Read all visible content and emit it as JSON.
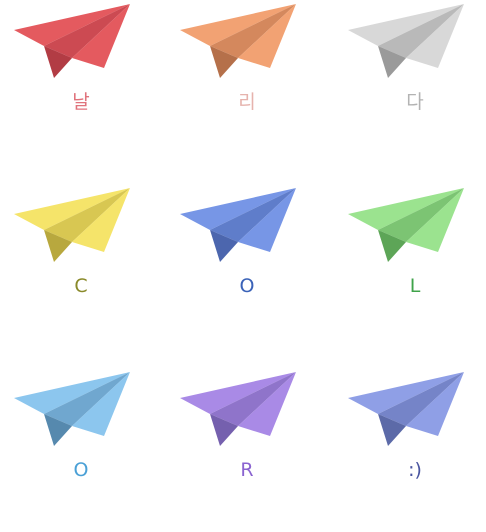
{
  "tiles": [
    {
      "label": "날",
      "icon": "paper-plane-icon",
      "color": "#e45a5f",
      "shade": "#b23c44",
      "mid": "#cc4a52",
      "text_color": "#e0737c"
    },
    {
      "label": "리",
      "icon": "paper-plane-icon",
      "color": "#f2a273",
      "shade": "#b5704a",
      "mid": "#d4885d",
      "text_color": "#e6b3ad"
    },
    {
      "label": "다",
      "icon": "paper-plane-icon",
      "color": "#d8d8d8",
      "shade": "#9a9a9a",
      "mid": "#b9b9b9",
      "text_color": "#b3b3b3"
    },
    {
      "label": "C",
      "icon": "paper-plane-icon",
      "color": "#f5e46a",
      "shade": "#b8a83e",
      "mid": "#d8c752",
      "text_color": "#8a8a2a"
    },
    {
      "label": "O",
      "icon": "paper-plane-icon",
      "color": "#7796e6",
      "shade": "#4c66ae",
      "mid": "#5f7dca",
      "text_color": "#3a62b8"
    },
    {
      "label": "L",
      "icon": "paper-plane-icon",
      "color": "#9be38f",
      "shade": "#5da557",
      "mid": "#7cc473",
      "text_color": "#3fa34a"
    },
    {
      "label": "O",
      "icon": "paper-plane-icon",
      "color": "#8cc6ee",
      "shade": "#5689ae",
      "mid": "#70a7cf",
      "text_color": "#4aa0d6"
    },
    {
      "label": "R",
      "icon": "paper-plane-icon",
      "color": "#a98ae6",
      "shade": "#7560ae",
      "mid": "#8f74ca",
      "text_color": "#8a63d0"
    },
    {
      "label": ":)",
      "icon": "paper-plane-icon",
      "color": "#8f9fe6",
      "shade": "#5c6aa8",
      "mid": "#7584c8",
      "text_color": "#4a55a0"
    }
  ]
}
